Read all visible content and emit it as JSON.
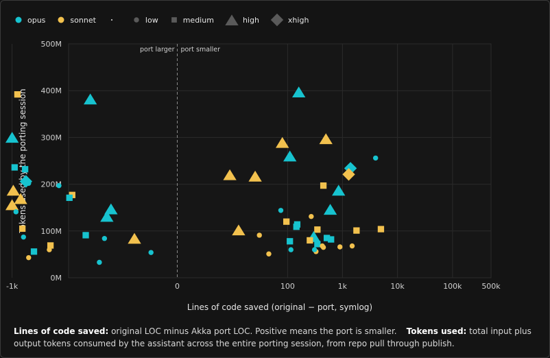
{
  "colors": {
    "opus": "#17c3cf",
    "sonnet": "#f2c14e",
    "neutral": "#5a5a5a",
    "grid": "#2b2b2b",
    "zero_line": "#8a8a8a",
    "axis_text": "#d0d0d0"
  },
  "legend": {
    "items": [
      {
        "label": "opus",
        "kind": "color",
        "icon": "circle-icon",
        "color": "#17c3cf"
      },
      {
        "label": "sonnet",
        "kind": "color",
        "icon": "circle-icon",
        "color": "#f2c14e"
      },
      {
        "label": "·",
        "kind": "text-dot",
        "icon": "dot-icon",
        "color": "#e6e6e6"
      },
      {
        "label": "low",
        "kind": "shape",
        "icon": "circle-icon",
        "color": "#5a5a5a"
      },
      {
        "label": "medium",
        "kind": "shape",
        "icon": "square-icon",
        "color": "#5a5a5a"
      },
      {
        "label": "high",
        "kind": "shape",
        "icon": "triangle-icon",
        "color": "#5a5a5a"
      },
      {
        "label": "xhigh",
        "kind": "shape",
        "icon": "diamond-icon",
        "color": "#5a5a5a"
      }
    ]
  },
  "chart_data": {
    "type": "scatter",
    "xlabel": "Lines of code saved (original − port, symlog)",
    "ylabel": "Tokens used by the porting session",
    "x_scale": "symlog",
    "x_ticks": [
      {
        "value": -1000,
        "label": "-1k"
      },
      {
        "value": 0,
        "label": "0"
      },
      {
        "value": 100,
        "label": "100"
      },
      {
        "value": 1000,
        "label": "1k"
      },
      {
        "value": 10000,
        "label": "10k"
      },
      {
        "value": 100000,
        "label": "100k"
      },
      {
        "value": 500000,
        "label": "500k"
      }
    ],
    "y_ticks": [
      {
        "value": 0,
        "label": "0M"
      },
      {
        "value": 100,
        "label": "100M"
      },
      {
        "value": 200,
        "label": "200M"
      },
      {
        "value": 300,
        "label": "300M"
      },
      {
        "value": 400,
        "label": "400M"
      },
      {
        "value": 500,
        "label": "500M"
      }
    ],
    "ylim": [
      0,
      500
    ],
    "grid": true,
    "zero_annotations": {
      "left": "port larger",
      "right": "port smaller"
    },
    "legend_position": "top-left",
    "points": [
      {
        "x": -800,
        "y": 392,
        "model": "sonnet",
        "effort": "medium"
      },
      {
        "x": -37,
        "y": 381,
        "model": "opus",
        "effort": "high"
      },
      {
        "x": 160,
        "y": 396,
        "model": "opus",
        "effort": "high"
      },
      {
        "x": -1000,
        "y": 299,
        "model": "opus",
        "effort": "high"
      },
      {
        "x": 80,
        "y": 288,
        "model": "sonnet",
        "effort": "high"
      },
      {
        "x": 500,
        "y": 296,
        "model": "sonnet",
        "effort": "high"
      },
      {
        "x": 110,
        "y": 259,
        "model": "opus",
        "effort": "high"
      },
      {
        "x": 4000,
        "y": 256,
        "model": "opus",
        "effort": "low"
      },
      {
        "x": -900,
        "y": 236,
        "model": "opus",
        "effort": "medium"
      },
      {
        "x": -580,
        "y": 232,
        "model": "opus",
        "effort": "medium"
      },
      {
        "x": 1400,
        "y": 234,
        "model": "opus",
        "effort": "xhigh"
      },
      {
        "x": 1300,
        "y": 221,
        "model": "sonnet",
        "effort": "xhigh"
      },
      {
        "x": 8,
        "y": 219,
        "model": "sonnet",
        "effort": "high"
      },
      {
        "x": 25,
        "y": 216,
        "model": "sonnet",
        "effort": "high"
      },
      {
        "x": -560,
        "y": 206,
        "model": "opus",
        "effort": "xhigh"
      },
      {
        "x": -500,
        "y": 202,
        "model": "opus",
        "effort": "low"
      },
      {
        "x": -140,
        "y": 197,
        "model": "opus",
        "effort": "low"
      },
      {
        "x": 450,
        "y": 197,
        "model": "sonnet",
        "effort": "medium"
      },
      {
        "x": 850,
        "y": 186,
        "model": "opus",
        "effort": "high"
      },
      {
        "x": -950,
        "y": 186,
        "model": "sonnet",
        "effort": "high"
      },
      {
        "x": -80,
        "y": 177,
        "model": "sonnet",
        "effort": "medium"
      },
      {
        "x": -90,
        "y": 171,
        "model": "opus",
        "effort": "medium"
      },
      {
        "x": -700,
        "y": 168,
        "model": "sonnet",
        "effort": "high"
      },
      {
        "x": -1000,
        "y": 155,
        "model": "sonnet",
        "effort": "high"
      },
      {
        "x": -15,
        "y": 146,
        "model": "opus",
        "effort": "high"
      },
      {
        "x": 600,
        "y": 145,
        "model": "opus",
        "effort": "high"
      },
      {
        "x": 75,
        "y": 144,
        "model": "opus",
        "effort": "low"
      },
      {
        "x": -850,
        "y": 141,
        "model": "opus",
        "effort": "low"
      },
      {
        "x": -18,
        "y": 130,
        "model": "opus",
        "effort": "high"
      },
      {
        "x": 270,
        "y": 131,
        "model": "sonnet",
        "effort": "low"
      },
      {
        "x": 95,
        "y": 120,
        "model": "sonnet",
        "effort": "medium"
      },
      {
        "x": 150,
        "y": 114,
        "model": "opus",
        "effort": "medium"
      },
      {
        "x": 145,
        "y": 109,
        "model": "opus",
        "effort": "medium"
      },
      {
        "x": -650,
        "y": 105,
        "model": "sonnet",
        "effort": "medium"
      },
      {
        "x": 1800,
        "y": 101,
        "model": "sonnet",
        "effort": "medium"
      },
      {
        "x": 5000,
        "y": 104,
        "model": "sonnet",
        "effort": "medium"
      },
      {
        "x": 12,
        "y": 101,
        "model": "sonnet",
        "effort": "high"
      },
      {
        "x": 350,
        "y": 103,
        "model": "sonnet",
        "effort": "medium"
      },
      {
        "x": 300,
        "y": 87,
        "model": "opus",
        "effort": "high"
      },
      {
        "x": -45,
        "y": 91,
        "model": "opus",
        "effort": "medium"
      },
      {
        "x": -20,
        "y": 84,
        "model": "opus",
        "effort": "low"
      },
      {
        "x": -5,
        "y": 83,
        "model": "sonnet",
        "effort": "high"
      },
      {
        "x": -620,
        "y": 87,
        "model": "opus",
        "effort": "low"
      },
      {
        "x": 30,
        "y": 91,
        "model": "sonnet",
        "effort": "low"
      },
      {
        "x": 520,
        "y": 85,
        "model": "opus",
        "effort": "medium"
      },
      {
        "x": 620,
        "y": 82,
        "model": "opus",
        "effort": "medium"
      },
      {
        "x": 255,
        "y": 80,
        "model": "sonnet",
        "effort": "medium"
      },
      {
        "x": 110,
        "y": 78,
        "model": "opus",
        "effort": "medium"
      },
      {
        "x": 350,
        "y": 72,
        "model": "opus",
        "effort": "medium"
      },
      {
        "x": 900,
        "y": 66,
        "model": "sonnet",
        "effort": "low"
      },
      {
        "x": 1500,
        "y": 68,
        "model": "sonnet",
        "effort": "low"
      },
      {
        "x": 430,
        "y": 68,
        "model": "sonnet",
        "effort": "low"
      },
      {
        "x": 450,
        "y": 65,
        "model": "sonnet",
        "effort": "low"
      },
      {
        "x": -200,
        "y": 69,
        "model": "sonnet",
        "effort": "medium"
      },
      {
        "x": -210,
        "y": 60,
        "model": "sonnet",
        "effort": "low"
      },
      {
        "x": -400,
        "y": 56,
        "model": "opus",
        "effort": "medium"
      },
      {
        "x": 115,
        "y": 60,
        "model": "opus",
        "effort": "low"
      },
      {
        "x": 330,
        "y": 56,
        "model": "sonnet",
        "effort": "low"
      },
      {
        "x": 310,
        "y": 60,
        "model": "opus",
        "effort": "low"
      },
      {
        "x": -2,
        "y": 54,
        "model": "opus",
        "effort": "low"
      },
      {
        "x": 45,
        "y": 51,
        "model": "sonnet",
        "effort": "low"
      },
      {
        "x": -500,
        "y": 43,
        "model": "sonnet",
        "effort": "low"
      },
      {
        "x": -25,
        "y": 33,
        "model": "opus",
        "effort": "low"
      }
    ]
  },
  "footnote": {
    "loc_title": "Lines of code saved:",
    "loc_text": " original LOC minus Akka port LOC. Positive means the port is smaller.",
    "tokens_title": "Tokens used:",
    "tokens_text": " total input plus output tokens consumed by the assistant across the entire porting session, from repo pull through publish."
  }
}
